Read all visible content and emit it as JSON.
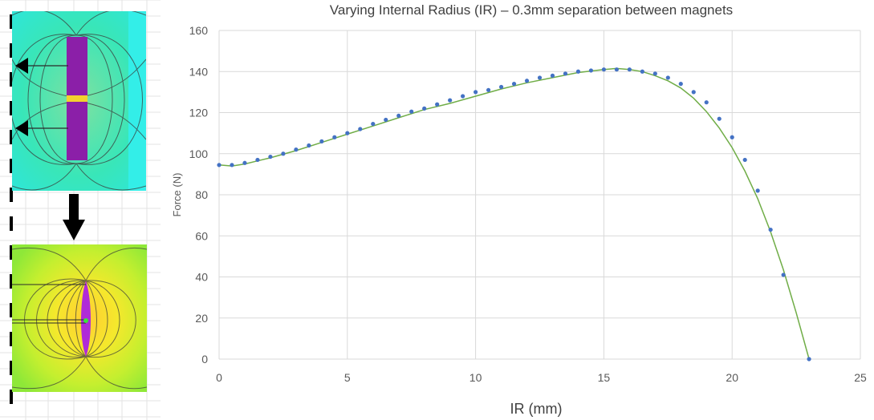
{
  "chart_data": {
    "type": "scatter",
    "title": "Varying Internal Radius (IR) – 0.3mm separation between magnets",
    "xlabel": "IR (mm)",
    "ylabel": "Force (N)",
    "xlim": [
      0,
      25
    ],
    "ylim": [
      0,
      160
    ],
    "xticks": [
      "0",
      "5",
      "10",
      "15",
      "20",
      "25"
    ],
    "yticks": [
      "0",
      "20",
      "40",
      "60",
      "80",
      "100",
      "120",
      "140",
      "160"
    ],
    "grid": true,
    "legend": "none",
    "colors": {
      "points": "#4472c4",
      "trend": "#70ad47"
    },
    "series": [
      {
        "type": "scatter",
        "x": [
          0,
          0.5,
          1,
          1.5,
          2,
          2.5,
          3,
          3.5,
          4,
          4.5,
          5,
          5.5,
          6,
          6.5,
          7,
          7.5,
          8,
          8.5,
          9,
          9.5,
          10,
          10.5,
          11,
          11.5,
          12,
          12.5,
          13,
          13.5,
          14,
          14.5,
          15,
          15.5,
          16,
          16.5,
          17,
          17.5,
          18,
          18.5,
          19,
          19.5,
          20,
          20.5,
          21,
          21.5,
          22,
          23
        ],
        "y": [
          94.5,
          94.5,
          95.5,
          97,
          98.5,
          100,
          102,
          104,
          106,
          108,
          110,
          112,
          114.5,
          116.5,
          118.5,
          120.5,
          122,
          124,
          126,
          128,
          130,
          131,
          132.5,
          134,
          135.5,
          137,
          138,
          139,
          140,
          140.5,
          141,
          141,
          141,
          140,
          139,
          137,
          134,
          130,
          125,
          117,
          108,
          97,
          82,
          63,
          41,
          0
        ]
      },
      {
        "type": "trendline",
        "x": [
          0,
          0.5,
          1,
          1.5,
          2,
          3,
          4,
          5,
          6,
          7,
          8,
          9,
          10,
          11,
          12,
          13,
          14,
          15,
          15.5,
          16,
          16.5,
          17,
          17.5,
          18,
          18.5,
          19,
          19.5,
          20,
          20.5,
          21,
          21.5,
          22,
          22.5,
          23
        ],
        "y": [
          94.5,
          94,
          95,
          96.5,
          98,
          101.5,
          105.5,
          109.5,
          113.5,
          117.5,
          121.5,
          124.5,
          128,
          131.5,
          134.5,
          137,
          139.5,
          141,
          141.5,
          141,
          140,
          138,
          135.5,
          132,
          127,
          120.5,
          112.5,
          103,
          91.5,
          78,
          62,
          43.5,
          22.5,
          0
        ]
      }
    ]
  },
  "left_panels": [
    {
      "description_icon": "magnet-field-simulation-icon"
    },
    {
      "description_icon": "magnet-field-simulation-icon"
    }
  ]
}
